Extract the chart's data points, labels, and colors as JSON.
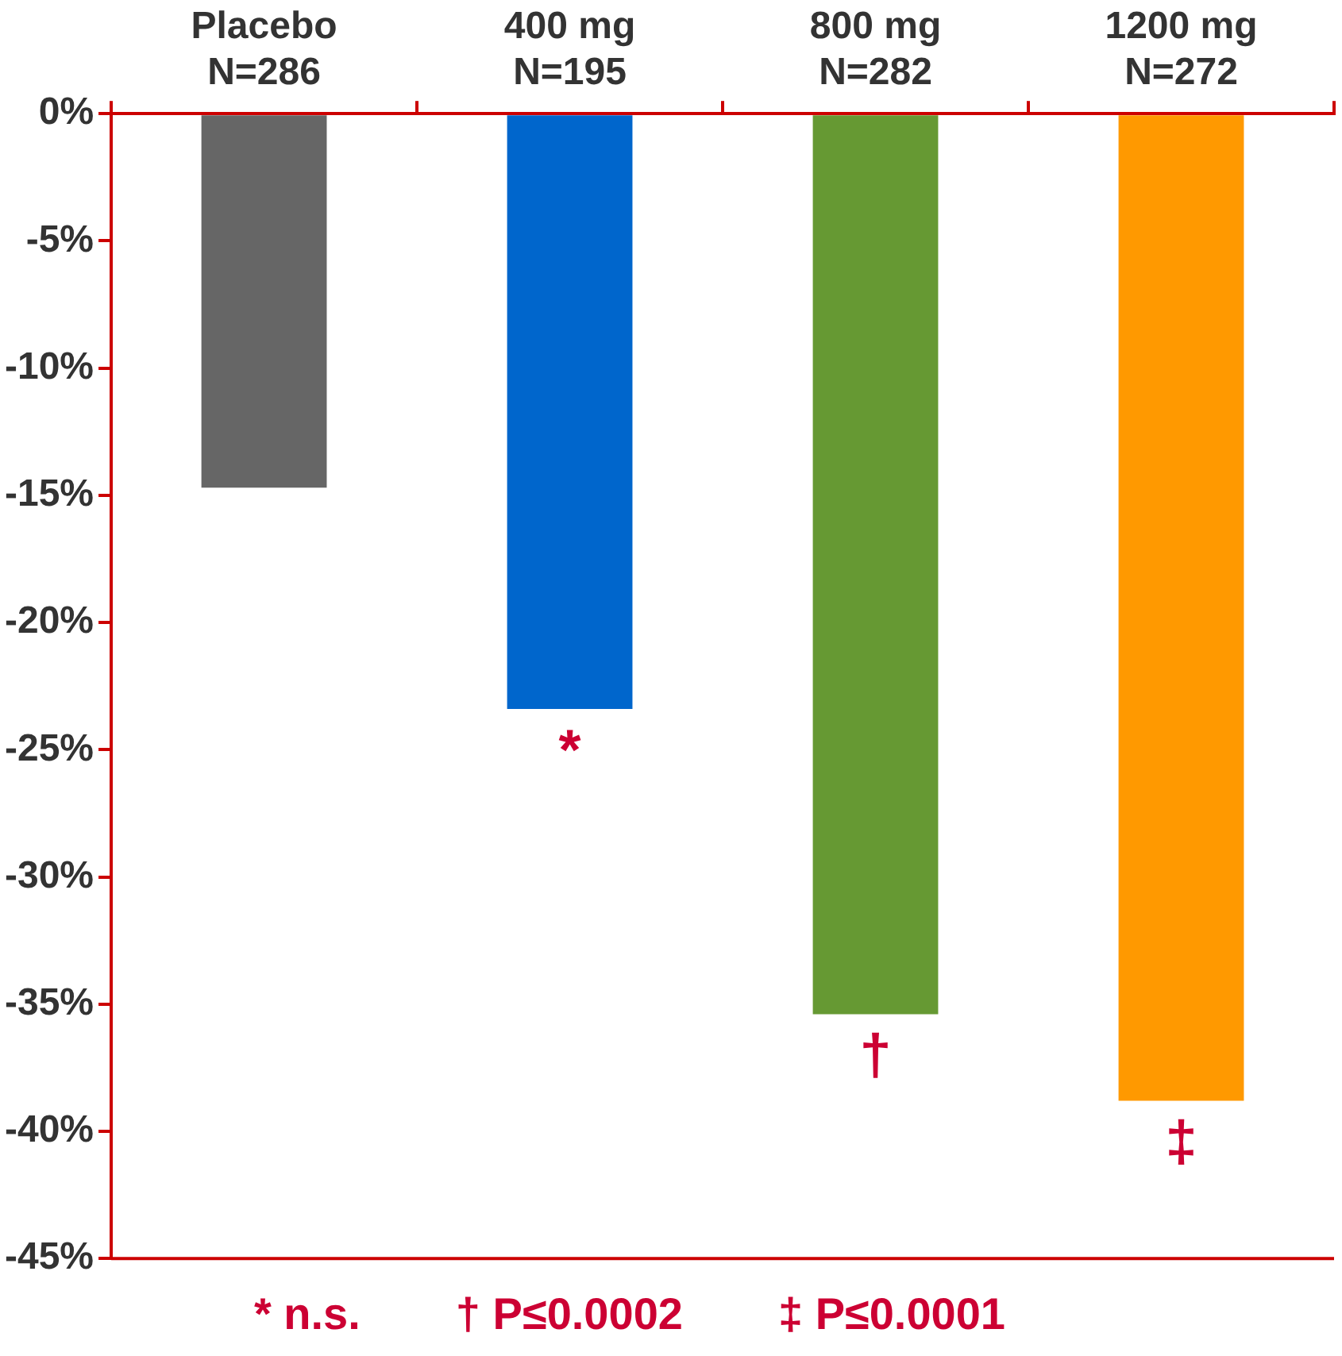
{
  "chart_data": {
    "type": "bar",
    "categories": [
      "Placebo\nN=286",
      "400 mg\nN=195",
      "800 mg\nN=282",
      "1200 mg\nN=272"
    ],
    "values": [
      -14.7,
      -23.4,
      -35.4,
      -38.8
    ],
    "colors": [
      "#666666",
      "#0066cc",
      "#669933",
      "#ff9900"
    ],
    "ylim": [
      -45,
      0
    ],
    "yticks": [
      {
        "value": 0,
        "label": "0%"
      },
      {
        "value": -5,
        "label": "-5%"
      },
      {
        "value": -10,
        "label": "-10%"
      },
      {
        "value": -15,
        "label": "-15%"
      },
      {
        "value": -20,
        "label": "-20%"
      },
      {
        "value": -25,
        "label": "-25%"
      },
      {
        "value": -30,
        "label": "-30%"
      },
      {
        "value": -35,
        "label": "-35%"
      },
      {
        "value": -40,
        "label": "-40%"
      },
      {
        "value": -45,
        "label": "-45%"
      }
    ],
    "grid": false,
    "annotations": [
      {
        "text": "*",
        "x": "400 mg\nN=195",
        "y": -23.4
      },
      {
        "text": "†",
        "x": "800 mg\nN=282",
        "y": -35.4
      },
      {
        "text": "‡",
        "x": "1200 mg\nN=272",
        "y": -38.8
      },
      "* n.s.",
      "† P≤0.0002",
      "‡ P≤0.0001"
    ]
  }
}
